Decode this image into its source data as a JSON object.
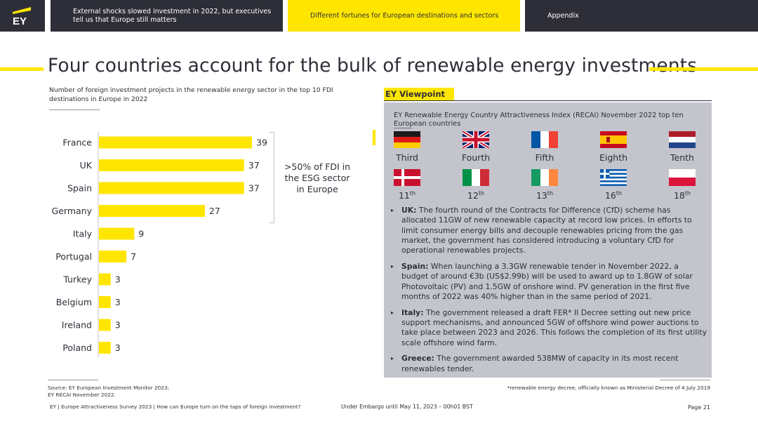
{
  "nav": {
    "logo": "EY",
    "tabs": [
      {
        "label": "External shocks slowed investment in 2022, but executives tell us that Europe still matters"
      },
      {
        "label": "Different fortunes for European destinations and sectors"
      },
      {
        "label": "Appendix"
      }
    ]
  },
  "page_title": "Four countries account for the bulk of renewable energy investments",
  "chart_description": "Number of foreign investment projects in the renewable energy sector in the top 10 FDI destinations in Europe in 2022",
  "chart_data": {
    "type": "bar",
    "orientation": "horizontal",
    "categories": [
      "France",
      "UK",
      "Spain",
      "Germany",
      "Italy",
      "Portugal",
      "Turkey",
      "Belgium",
      "Ireland",
      "Poland"
    ],
    "values": [
      39,
      37,
      37,
      27,
      9,
      7,
      3,
      3,
      3,
      3
    ],
    "xlim": [
      0,
      39
    ],
    "bar_color": "#ffe600",
    "annotation": ">50% of FDI in the ESG sector in Europe"
  },
  "viewpoint": {
    "label": "EY Viewpoint",
    "heading": "EY Renewable Energy Country Attractiveness Index (RECAI) November 2022 top ten European countries",
    "row1": [
      {
        "flag": "germany",
        "rank": "Third"
      },
      {
        "flag": "uk",
        "rank": "Fourth"
      },
      {
        "flag": "france",
        "rank": "Fifth"
      },
      {
        "flag": "spain",
        "rank": "Eighth"
      },
      {
        "flag": "netherlands",
        "rank": "Tenth"
      }
    ],
    "row2": [
      {
        "flag": "denmark",
        "num": "11",
        "suffix": "th"
      },
      {
        "flag": "italy",
        "num": "12",
        "suffix": "th"
      },
      {
        "flag": "ireland",
        "num": "13",
        "suffix": "th"
      },
      {
        "flag": "greece",
        "num": "16",
        "suffix": "th"
      },
      {
        "flag": "poland",
        "num": "18",
        "suffix": "th"
      }
    ],
    "bullets": [
      {
        "lead": "UK:",
        "text": " The fourth round of the Contracts for Difference (CfD) scheme has allocated 11GW of new renewable capacity at record low prices. In efforts to limit consumer energy bills and decouple renewables pricing from the gas market, the government has considered introducing a voluntary CfD for operational renewables projects."
      },
      {
        "lead": "Spain:",
        "text": " When launching a 3.3GW renewable tender in November 2022, a budget of around €3b (US$2.99b) will be used to award up to 1.8GW of solar Photovoltaic (PV) and 1.5GW of onshore wind. PV generation in the first five months of 2022 was 40% higher than in the same period of 2021."
      },
      {
        "lead": "Italy:",
        "text": " The government released a draft FER* II Decree setting out new price support mechanisms, and announced 5GW of offshore wind power auctions to take place between 2023 and 2026. This follows the completion of its first utility scale offshore wind farm."
      },
      {
        "lead": "Greece:",
        "text": " The government awarded 538MW of capacity in its most recent renewables tender."
      }
    ]
  },
  "footer": {
    "source_line1": "Source: EY European Investment Monitor 2023;",
    "source_line2": "EY RECAI November 2022.",
    "footnote": "*renewable energy decree, officially known as Ministerial Decree of 4 July 2019",
    "survey": "EY | Europe Attractiveness Survey 2023 | How can Europe turn on the taps of foreign investment?",
    "embargo": "Under Embargo until May 11, 2023 – 00h01 BST",
    "page": "Page 21"
  }
}
